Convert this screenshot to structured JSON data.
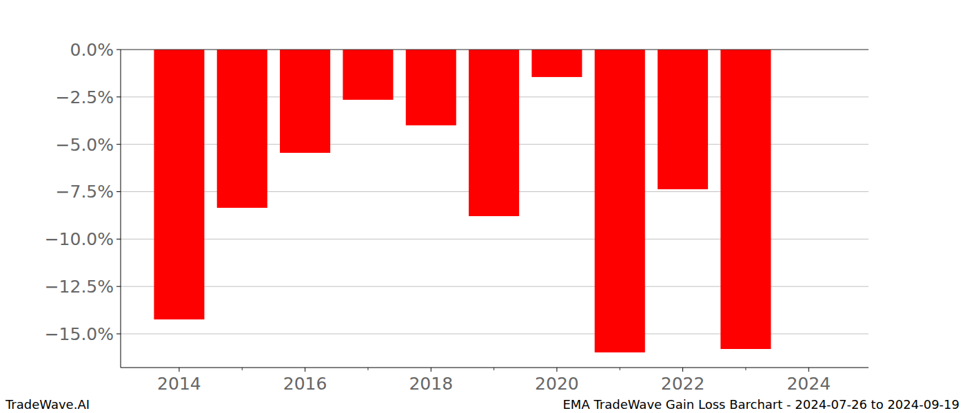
{
  "chart_data": {
    "type": "bar",
    "x": [
      2014,
      2015,
      2016,
      2017,
      2018,
      2019,
      2020,
      2021,
      2022,
      2023
    ],
    "values": [
      -14.24,
      -8.35,
      -5.45,
      -2.65,
      -4.0,
      -8.79,
      -1.45,
      -15.98,
      -7.37,
      -15.8
    ],
    "color": "#ff0000",
    "xlim": [
      2013.07,
      2024.95
    ],
    "xticks": [
      2014,
      2016,
      2018,
      2020,
      2022,
      2024
    ],
    "ylim": [
      -16.78,
      0
    ],
    "yticks": [
      {
        "value": 0,
        "label": "0.0%"
      },
      {
        "value": -2.5,
        "label": "−2.5%"
      },
      {
        "value": -5,
        "label": "−5.0%"
      },
      {
        "value": -7.5,
        "label": "−7.5%"
      },
      {
        "value": -10,
        "label": "−10.0%"
      },
      {
        "value": -12.5,
        "label": "−12.5%"
      },
      {
        "value": -15,
        "label": "−15.0%"
      }
    ],
    "grid": true,
    "annotations": [
      "TradeWave.AI",
      "EMA TradeWave Gain Loss Barchart - 2024-07-26 to 2024-09-19"
    ]
  }
}
